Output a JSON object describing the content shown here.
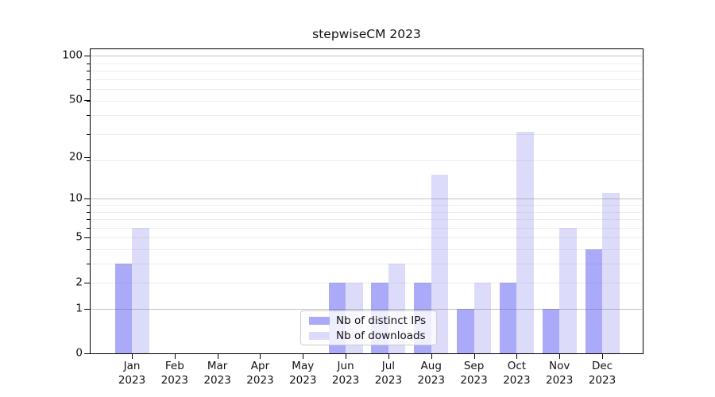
{
  "title": "stepwiseCM 2023",
  "chart_data": {
    "type": "bar",
    "title": "stepwiseCM 2023",
    "categories": [
      "Jan",
      "Feb",
      "Mar",
      "Apr",
      "May",
      "Jun",
      "Jul",
      "Aug",
      "Sep",
      "Oct",
      "Nov",
      "Dec"
    ],
    "year_label": "2023",
    "series": [
      {
        "name": "Nb of distinct IPs",
        "color": "#aaaaf8",
        "values": [
          3,
          0,
          0,
          0,
          0,
          2,
          2,
          2,
          1,
          2,
          1,
          4
        ]
      },
      {
        "name": "Nb of downloads",
        "color": "#dcdcfa",
        "values": [
          6,
          0,
          0,
          0,
          0,
          2,
          3,
          15,
          2,
          30,
          6,
          11
        ]
      }
    ],
    "xlabel": "",
    "ylabel": "",
    "yscale": "log10(1+y)",
    "yticks": [
      0,
      1,
      2,
      5,
      10,
      20,
      50,
      100
    ],
    "ylim": [
      0,
      112
    ],
    "grid": {
      "major_at": [
        1,
        10,
        100
      ],
      "minor_decades_of_1_plus_y": true,
      "drawn_over_bars": true
    },
    "legend_position": "lower center",
    "colors": {
      "background": "#ffffff",
      "axis": "#000000",
      "text": "#111111",
      "grid_major": "#c6c6c6",
      "grid_minor": "#ededed",
      "legend_border": "#cccccc"
    }
  }
}
